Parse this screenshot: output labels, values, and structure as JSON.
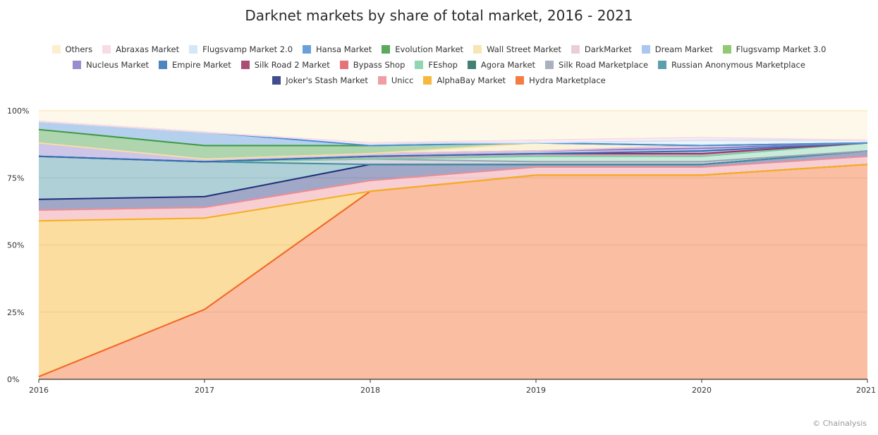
{
  "chart_data": {
    "type": "area",
    "title": "Darknet markets by share of total market, 2016 - 2021",
    "x": [
      "2016",
      "2017",
      "2018",
      "2019",
      "2020",
      "2021"
    ],
    "ylim": [
      0,
      100
    ],
    "yticks": [
      "0%",
      "25%",
      "50%",
      "75%",
      "100%"
    ],
    "grid": true,
    "legend_position": "top",
    "series": [
      {
        "name": "Hydra Marketplace",
        "color": "#f26522",
        "values": [
          1,
          26,
          70,
          76,
          76,
          80
        ]
      },
      {
        "name": "AlphaBay Market",
        "color": "#f6ad1b",
        "values": [
          58,
          34,
          0,
          0,
          0,
          0
        ]
      },
      {
        "name": "Unicc",
        "color": "#ec8d95",
        "values": [
          4,
          4,
          4,
          3,
          3,
          3
        ]
      },
      {
        "name": "Joker's Stash Market",
        "color": "#1f2f7a",
        "values": [
          4,
          4,
          6,
          1,
          1,
          2
        ]
      },
      {
        "name": "Russian Anonymous Marketplace",
        "color": "#3f8f9e",
        "values": [
          16,
          13,
          0,
          0,
          0,
          0
        ]
      },
      {
        "name": "Silk Road Marketplace",
        "color": "#9aa3b4",
        "values": [
          0,
          0,
          2,
          1,
          1,
          0
        ]
      },
      {
        "name": "Agora Market",
        "color": "#1f6b5a",
        "values": [
          0,
          0,
          0,
          0,
          0,
          0
        ]
      },
      {
        "name": "FEshop",
        "color": "#7ccfa6",
        "values": [
          0,
          0,
          0,
          2,
          2,
          3
        ]
      },
      {
        "name": "Bypass Shop",
        "color": "#e05a63",
        "values": [
          0,
          0,
          0,
          0,
          0,
          0
        ]
      },
      {
        "name": "Silk Road 2 Market",
        "color": "#9b2f5e",
        "values": [
          0,
          0,
          1,
          1,
          1,
          0
        ]
      },
      {
        "name": "Empire Market",
        "color": "#2f6fb5",
        "values": [
          0,
          0,
          0,
          0,
          1,
          0
        ]
      },
      {
        "name": "Nucleus Market",
        "color": "#8a78c8",
        "values": [
          5,
          1,
          1,
          1,
          1,
          0
        ]
      },
      {
        "name": "Flugsvamp Market 3.0",
        "color": "#7fbf5b",
        "values": [
          0,
          0,
          0,
          0,
          0,
          0
        ]
      },
      {
        "name": "Dream Market",
        "color": "#9dbcec",
        "values": [
          0,
          0,
          0,
          0,
          0,
          0
        ]
      },
      {
        "name": "DarkMarket",
        "color": "#e7c3d6",
        "values": [
          0,
          0,
          0,
          0,
          1,
          0
        ]
      },
      {
        "name": "Wall Street Market",
        "color": "#f6e0a6",
        "values": [
          0,
          0,
          0,
          3,
          0,
          0
        ]
      },
      {
        "name": "Evolution Market",
        "color": "#3d9a3f",
        "values": [
          5,
          5,
          3,
          0,
          0,
          0
        ]
      },
      {
        "name": "Hansa Market",
        "color": "#4f8fd4",
        "values": [
          3,
          5,
          0,
          0,
          0,
          0
        ]
      },
      {
        "name": "Flugsvamp Market 2.0",
        "color": "#cfe2f6",
        "values": [
          0,
          0,
          1,
          0,
          2,
          1
        ]
      },
      {
        "name": "Abraxas Market",
        "color": "#f9dbe6",
        "values": [
          0,
          0,
          0,
          1,
          1,
          0
        ]
      },
      {
        "name": "Others",
        "color": "#fcefcf",
        "values": [
          4,
          8,
          12,
          11,
          10,
          11
        ]
      }
    ],
    "legend_order": [
      "Others",
      "Abraxas Market",
      "Flugsvamp Market 2.0",
      "Hansa Market",
      "Evolution Market",
      "Wall Street Market",
      "DarkMarket",
      "Dream Market",
      "Flugsvamp Market 3.0",
      "Nucleus Market",
      "Empire Market",
      "Silk Road 2 Market",
      "Bypass Shop",
      "FEshop",
      "Agora Market",
      "Silk Road Marketplace",
      "Russian Anonymous Marketplace",
      "Joker's Stash Market",
      "Unicc",
      "AlphaBay Market",
      "Hydra Marketplace"
    ]
  },
  "credit": "© Chainalysis"
}
